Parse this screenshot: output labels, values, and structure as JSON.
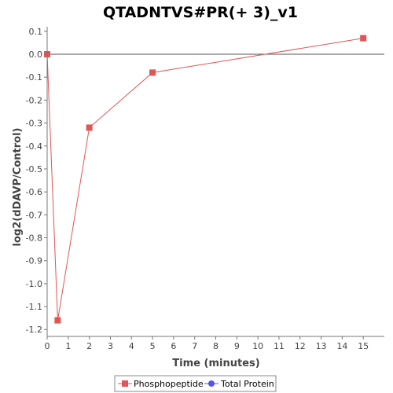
{
  "chart_data": {
    "type": "line",
    "title": "QTADNTVS#PR(+ 3)_v1",
    "xlabel": "Time (minutes)",
    "ylabel": "log2(dDAVP/Control)",
    "xlim": [
      0,
      16
    ],
    "ylim": [
      -1.23,
      0.12
    ],
    "x_ticks": [
      0,
      1,
      2,
      3,
      4,
      5,
      6,
      7,
      8,
      9,
      10,
      11,
      12,
      13,
      14,
      15
    ],
    "y_ticks": [
      0.1,
      0.0,
      -0.1,
      -0.2,
      -0.3,
      -0.4,
      -0.5,
      -0.6,
      -0.7,
      -0.8,
      -0.9,
      -1.0,
      -1.1,
      -1.2
    ],
    "x_tick_labels": [
      "0",
      "1",
      "2",
      "3",
      "4",
      "5",
      "6",
      "7",
      "8",
      "9",
      "10",
      "11",
      "12",
      "13",
      "14",
      "15"
    ],
    "y_tick_labels": [
      "0.1",
      "0.0",
      "-0.1",
      "-0.2",
      "-0.3",
      "-0.4",
      "-0.5",
      "-0.6",
      "-0.7",
      "-0.8",
      "-0.9",
      "-1.0",
      "-1.1",
      "-1.2"
    ],
    "grid": false,
    "zero_line": true,
    "legend_position": "bottom",
    "series": [
      {
        "name": "Phosphopeptide",
        "color": "#e05555",
        "marker": "square",
        "x": [
          0,
          0.5,
          2,
          5,
          15
        ],
        "y": [
          0.0,
          -1.16,
          -0.32,
          -0.08,
          0.07
        ]
      },
      {
        "name": "Total Protein",
        "color": "#5555e0",
        "marker": "circle",
        "x": [],
        "y": []
      }
    ]
  }
}
